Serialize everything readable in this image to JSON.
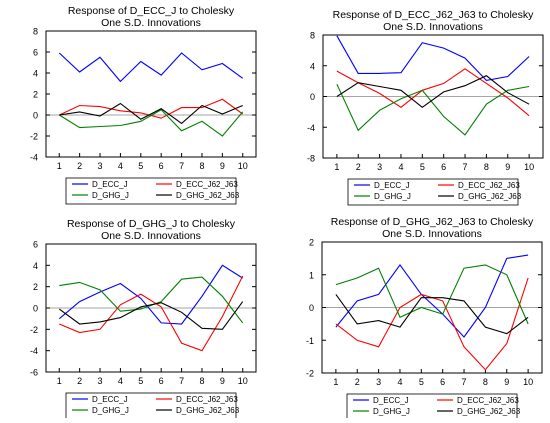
{
  "chart_data": [
    {
      "type": "line",
      "title": "Response of D_ECC_J to Cholesky",
      "subtitle": "One S.D. Innovations",
      "x": [
        1,
        2,
        3,
        4,
        5,
        6,
        7,
        8,
        9,
        10
      ],
      "ylim": [
        -4,
        8
      ],
      "yticks": [
        -4,
        -2,
        0,
        2,
        4,
        6,
        8
      ],
      "grid": false,
      "legend": "bottom",
      "series": [
        {
          "name": "D_ECC_J",
          "color": "#0000ff",
          "values": [
            5.9,
            4.1,
            5.5,
            3.2,
            5.1,
            3.8,
            5.9,
            4.3,
            4.9,
            3.5
          ]
        },
        {
          "name": "D_ECC_J62_J63",
          "color": "#ff0000",
          "values": [
            0.0,
            0.9,
            0.8,
            0.4,
            0.2,
            -0.3,
            0.7,
            0.7,
            1.5,
            0.1
          ]
        },
        {
          "name": "D_GHG_J",
          "color": "#008000",
          "values": [
            0.0,
            -1.2,
            -1.1,
            -1.0,
            -0.6,
            0.5,
            -1.5,
            -0.6,
            -2.0,
            0.3
          ]
        },
        {
          "name": "D_GHG_J62_J63",
          "color": "#000000",
          "values": [
            0.0,
            0.3,
            -0.1,
            1.1,
            -0.4,
            0.6,
            -0.8,
            0.9,
            0.1,
            0.9
          ]
        }
      ]
    },
    {
      "type": "line",
      "title": "Response of D_ECC_J62_J63 to Cholesky",
      "subtitle": "One S.D. Innovations",
      "x": [
        1,
        2,
        3,
        4,
        5,
        6,
        7,
        8,
        9,
        10
      ],
      "ylim": [
        -8,
        8
      ],
      "yticks": [
        -8,
        -4,
        0,
        4,
        8
      ],
      "grid": false,
      "legend": "bottom",
      "series": [
        {
          "name": "D_ECC_J",
          "color": "#0000ff",
          "values": [
            7.9,
            3.0,
            3.0,
            3.1,
            7.0,
            6.3,
            5.0,
            2.1,
            2.6,
            5.2
          ]
        },
        {
          "name": "D_ECC_J62_J63",
          "color": "#ff0000",
          "values": [
            3.3,
            1.8,
            0.4,
            -1.4,
            0.8,
            1.7,
            3.6,
            1.7,
            -0.2,
            -2.5
          ]
        },
        {
          "name": "D_GHG_J",
          "color": "#008000",
          "values": [
            1.6,
            -4.4,
            -1.8,
            -0.3,
            0.8,
            -2.6,
            -5.0,
            -1.0,
            0.8,
            1.3
          ]
        },
        {
          "name": "D_GHG_J62_J63",
          "color": "#000000",
          "values": [
            0.0,
            1.8,
            1.3,
            0.8,
            -1.4,
            0.6,
            1.4,
            2.7,
            0.5,
            -1.0
          ]
        }
      ]
    },
    {
      "type": "line",
      "title": "Response of D_GHG_J to Cholesky",
      "subtitle": "One S.D. Innovations",
      "x": [
        1,
        2,
        3,
        4,
        5,
        6,
        7,
        8,
        9,
        10
      ],
      "ylim": [
        -6,
        6
      ],
      "yticks": [
        -6,
        -4,
        -2,
        0,
        2,
        4,
        6
      ],
      "grid": false,
      "legend": "bottom",
      "series": [
        {
          "name": "D_ECC_J",
          "color": "#0000ff",
          "values": [
            -1.0,
            0.6,
            1.5,
            2.3,
            0.9,
            -1.4,
            -1.5,
            1.1,
            4.0,
            2.8
          ]
        },
        {
          "name": "D_ECC_J62_J63",
          "color": "#ff0000",
          "values": [
            -1.5,
            -2.3,
            -2.0,
            0.3,
            1.3,
            0.1,
            -3.3,
            -4.0,
            -0.8,
            3.0
          ]
        },
        {
          "name": "D_GHG_J",
          "color": "#008000",
          "values": [
            2.1,
            2.4,
            1.7,
            -0.3,
            -0.1,
            0.6,
            2.7,
            2.9,
            1.1,
            -1.4
          ]
        },
        {
          "name": "D_GHG_J62_J63",
          "color": "#000000",
          "values": [
            -0.1,
            -1.5,
            -1.3,
            -0.9,
            0.1,
            0.5,
            -0.4,
            -1.9,
            -2.0,
            0.6
          ]
        }
      ]
    },
    {
      "type": "line",
      "title": "Response of D_GHG_J62_J63 to Cholesky",
      "subtitle": "One S.D. Innovations",
      "x": [
        1,
        2,
        3,
        4,
        5,
        6,
        7,
        8,
        9,
        10
      ],
      "ylim": [
        -2,
        2
      ],
      "yticks": [
        -2,
        -1,
        0,
        1,
        2
      ],
      "grid": false,
      "legend": "bottom",
      "series": [
        {
          "name": "D_ECC_J",
          "color": "#0000ff",
          "values": [
            -0.6,
            0.2,
            0.4,
            1.3,
            0.4,
            -0.2,
            -0.9,
            0.0,
            1.5,
            1.6
          ]
        },
        {
          "name": "D_ECC_J62_J63",
          "color": "#ff0000",
          "values": [
            -0.5,
            -1.0,
            -1.2,
            0.0,
            0.4,
            0.2,
            -1.2,
            -1.9,
            -1.1,
            0.9
          ]
        },
        {
          "name": "D_GHG_J",
          "color": "#008000",
          "values": [
            0.7,
            0.9,
            1.2,
            -0.3,
            0.0,
            -0.2,
            1.2,
            1.3,
            1.0,
            -0.5
          ]
        },
        {
          "name": "D_GHG_J62_J63",
          "color": "#000000",
          "values": [
            0.4,
            -0.5,
            -0.4,
            -0.6,
            0.3,
            0.3,
            0.2,
            -0.6,
            -0.8,
            -0.3
          ]
        }
      ]
    }
  ]
}
